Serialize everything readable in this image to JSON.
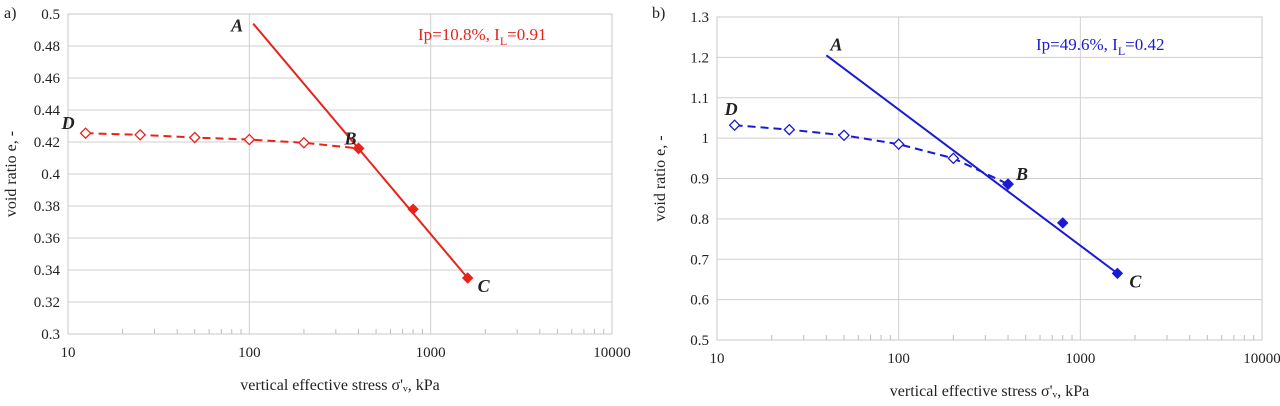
{
  "chart_data": [
    {
      "type": "line",
      "panel_label": "a)",
      "xscale": "log",
      "xlim": [
        10,
        10000
      ],
      "ylim": [
        0.3,
        0.5
      ],
      "x_ticks": [
        "10",
        "100",
        "1000",
        "10000"
      ],
      "y_ticks": [
        "0.3",
        "0.32",
        "0.34",
        "0.36",
        "0.38",
        "0.4",
        "0.42",
        "0.44",
        "0.46",
        "0.48",
        "0.5"
      ],
      "xlabel": "vertical effective stress σ'ᵥ, kPa",
      "ylabel": "void ratio e, -",
      "grid": true,
      "color": "#e8231c",
      "annotation": {
        "prefix": "Ip=10.8%, I",
        "sub": "L",
        "suffix": "=0.91"
      },
      "series": [
        {
          "style": "dashed-open-diamonds",
          "x": [
            12.5,
            25,
            50,
            100,
            200,
            400
          ],
          "y": [
            0.4255,
            0.4245,
            0.4228,
            0.4215,
            0.4195,
            0.416
          ]
        },
        {
          "style": "solid-line",
          "x": [
            105,
            1600
          ],
          "y": [
            0.494,
            0.335
          ]
        },
        {
          "style": "filled-diamonds",
          "x": [
            400,
            800,
            1600
          ],
          "y": [
            0.416,
            0.378,
            0.335
          ]
        }
      ],
      "point_labels": [
        {
          "text": "A",
          "x": 105,
          "y": 0.494
        },
        {
          "text": "B",
          "x": 400,
          "y": 0.416
        },
        {
          "text": "C",
          "x": 1600,
          "y": 0.335
        },
        {
          "text": "D",
          "x": 12.5,
          "y": 0.4255
        }
      ]
    },
    {
      "type": "line",
      "panel_label": "b)",
      "xscale": "log",
      "xlim": [
        10,
        10000
      ],
      "ylim": [
        0.5,
        1.3
      ],
      "x_ticks": [
        "10",
        "100",
        "1000",
        "10000"
      ],
      "y_ticks": [
        "0.5",
        "0.6",
        "0.7",
        "0.8",
        "0.9",
        "1",
        "1.1",
        "1.2",
        "1.3"
      ],
      "xlabel": "vertical effective stress σ'ᵥ, kPa",
      "ylabel": "void ratio e, -",
      "grid": true,
      "color": "#1a1ad6",
      "annotation": {
        "prefix": "Ip=49.6%, I",
        "sub": "L",
        "suffix": "=0.42"
      },
      "series": [
        {
          "style": "dashed-open-diamonds",
          "x": [
            12.5,
            25,
            50,
            100,
            200,
            400
          ],
          "y": [
            1.032,
            1.021,
            1.007,
            0.985,
            0.95,
            0.886
          ]
        },
        {
          "style": "solid-line",
          "x": [
            40,
            1600
          ],
          "y": [
            1.205,
            0.665
          ]
        },
        {
          "style": "filled-diamonds",
          "x": [
            400,
            800,
            1600
          ],
          "y": [
            0.886,
            0.79,
            0.665
          ]
        }
      ],
      "point_labels": [
        {
          "text": "A",
          "x": 40,
          "y": 1.205
        },
        {
          "text": "B",
          "x": 400,
          "y": 0.886
        },
        {
          "text": "C",
          "x": 1600,
          "y": 0.665
        },
        {
          "text": "D",
          "x": 12.5,
          "y": 1.032
        }
      ]
    }
  ]
}
